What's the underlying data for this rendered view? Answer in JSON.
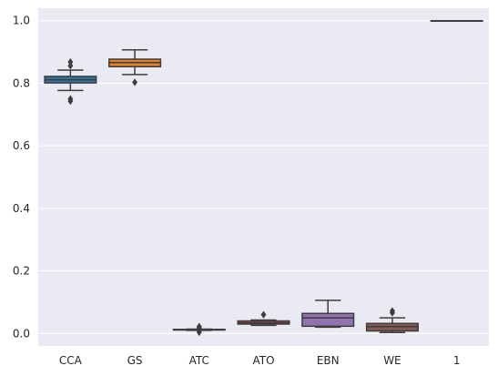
{
  "chart_data": {
    "type": "box",
    "categories": [
      "CCA",
      "GS",
      "ATC",
      "ATO",
      "EBN",
      "WE",
      "1"
    ],
    "ylim": [
      -0.04,
      1.04
    ],
    "yticks": [
      0.0,
      0.2,
      0.4,
      0.6,
      0.8,
      1.0
    ],
    "ytick_labels": [
      "0.0",
      "0.2",
      "0.4",
      "0.6",
      "0.8",
      "1.0"
    ],
    "grid": true,
    "boxes": [
      {
        "category": "CCA",
        "color": "#3274a1",
        "whisker_low": 0.777,
        "q1": 0.801,
        "median": 0.811,
        "q3": 0.822,
        "whisker_high": 0.842,
        "outliers": [
          0.868,
          0.856,
          0.75,
          0.743
        ]
      },
      {
        "category": "GS",
        "color": "#e1812c",
        "whisker_low": 0.828,
        "q1": 0.853,
        "median": 0.866,
        "q3": 0.877,
        "whisker_high": 0.907,
        "outliers": [
          0.803
        ]
      },
      {
        "category": "ATC",
        "color": "#3a923a",
        "whisker_low": 0.01,
        "q1": 0.011,
        "median": 0.012,
        "q3": 0.013,
        "whisker_high": 0.014,
        "outliers": [
          0.022,
          0.018,
          0.004
        ]
      },
      {
        "category": "ATO",
        "color": "#c03d3e",
        "whisker_low": 0.026,
        "q1": 0.03,
        "median": 0.034,
        "q3": 0.04,
        "whisker_high": 0.043,
        "outliers": [
          0.06
        ]
      },
      {
        "category": "EBN",
        "color": "#9372b2",
        "whisker_low": 0.02,
        "q1": 0.023,
        "median": 0.05,
        "q3": 0.064,
        "whisker_high": 0.106,
        "outliers": []
      },
      {
        "category": "WE",
        "color": "#845b53",
        "whisker_low": 0.003,
        "q1": 0.008,
        "median": 0.022,
        "q3": 0.032,
        "whisker_high": 0.05,
        "outliers": [
          0.072,
          0.066
        ]
      },
      {
        "category": "1",
        "color": "#d684bd",
        "whisker_low": 1.0,
        "q1": 1.0,
        "median": 1.0,
        "q3": 1.0,
        "whisker_high": 1.0,
        "outliers": []
      }
    ],
    "colors": {
      "background": "#eaeaf2",
      "grid": "#ffffff",
      "line": "#3d3d3d"
    }
  }
}
